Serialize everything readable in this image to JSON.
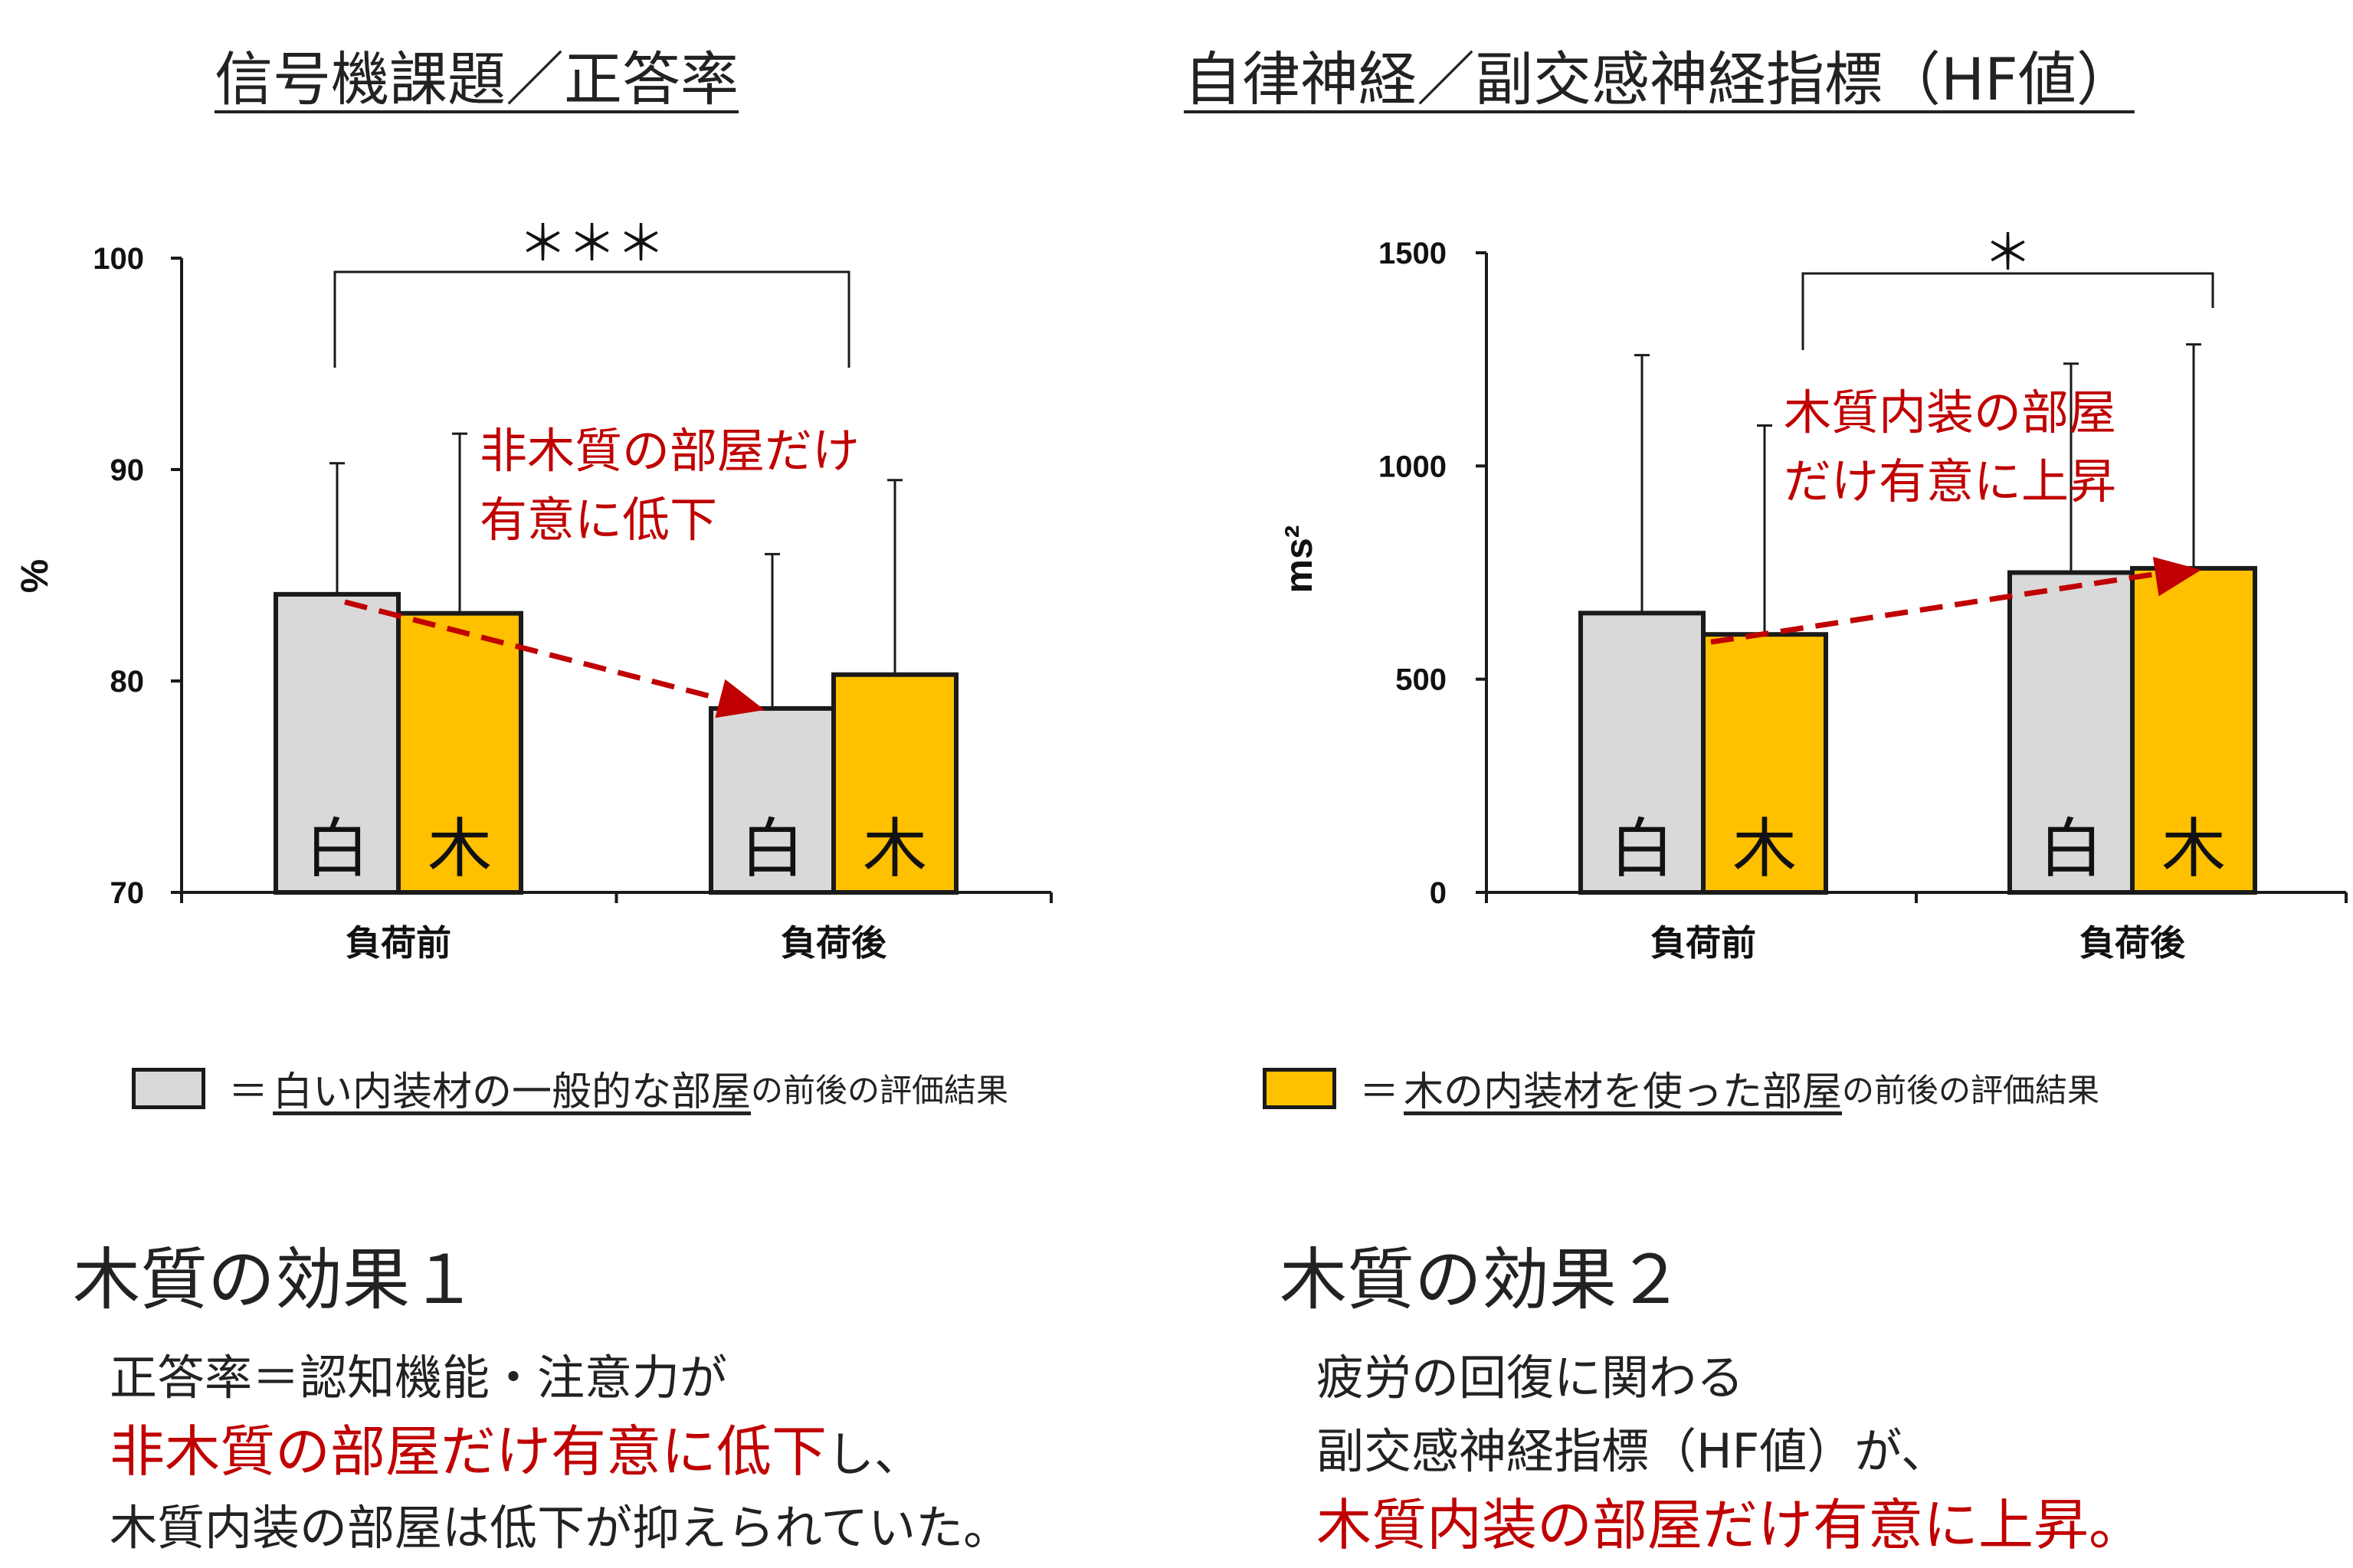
{
  "titles": {
    "left": "信号機課題／正答率",
    "right": "自律神経／副交感神経指標（HF値）"
  },
  "colors": {
    "white_room": "#d9d9d9",
    "wood_room": "#ffc000",
    "annotation": "#c00000",
    "outline": "#1a1a1a"
  },
  "chart_data": [
    {
      "type": "bar",
      "title": "信号機課題／正答率",
      "ylabel": "%",
      "ylim": [
        70,
        100
      ],
      "yticks": [
        70,
        80,
        90,
        100
      ],
      "categories": [
        "負荷前",
        "負荷後"
      ],
      "series": [
        {
          "name": "白",
          "color": "#d9d9d9",
          "values": [
            84.1,
            78.7
          ],
          "error_upper": [
            90.3,
            86.0
          ]
        },
        {
          "name": "木",
          "color": "#ffc000",
          "values": [
            83.2,
            80.3
          ],
          "error_upper": [
            91.7,
            89.5
          ]
        }
      ],
      "significance": {
        "label": "＊＊＊",
        "from": "負荷前・白",
        "to": "負荷後・白"
      },
      "annotation": {
        "lines": [
          "非木質の部屋だけ",
          "有意に低下"
        ],
        "arrow_from": "負荷前・白",
        "arrow_to": "負荷後・白"
      }
    },
    {
      "type": "bar",
      "title": "自律神経／副交感神経指標（HF値）",
      "ylabel": "ms²",
      "ylim": [
        0,
        1500
      ],
      "yticks": [
        0,
        500,
        1000,
        1500
      ],
      "categories": [
        "負荷前",
        "負荷後"
      ],
      "series": [
        {
          "name": "白",
          "color": "#d9d9d9",
          "values": [
            655,
            750
          ],
          "error_upper": [
            1260,
            1240
          ]
        },
        {
          "name": "木",
          "color": "#ffc000",
          "values": [
            605,
            760
          ],
          "error_upper": [
            1095,
            1285
          ]
        }
      ],
      "significance": {
        "label": "＊",
        "from": "負荷前・木",
        "to": "負荷後・木"
      },
      "annotation": {
        "lines": [
          "木質内装の部屋",
          "だけ有意に上昇"
        ],
        "arrow_from": "負荷前・木",
        "arrow_to": "負荷後・木"
      }
    }
  ],
  "legend": {
    "white": {
      "eq": "＝",
      "main": "白い内装材の一般的な部屋",
      "suffix": "の前後の評価結果"
    },
    "wood": {
      "eq": "＝",
      "main": "木の内装材を使った部屋",
      "suffix": "の前後の評価結果"
    }
  },
  "effects": {
    "left": {
      "heading": "木質の効果１",
      "line1": "正答率＝認知機能・注意力が",
      "line2_red": "非木質の部屋だけ有意に低下",
      "line2_rest": "し、",
      "line3": "木質内装の部屋は低下が抑えられていた。"
    },
    "right": {
      "heading": "木質の効果２",
      "line1": "疲労の回復に関わる",
      "line2": "副交感神経指標（HF値）が、",
      "line3_red": "木質内装の部屋だけ有意に上昇。"
    }
  }
}
